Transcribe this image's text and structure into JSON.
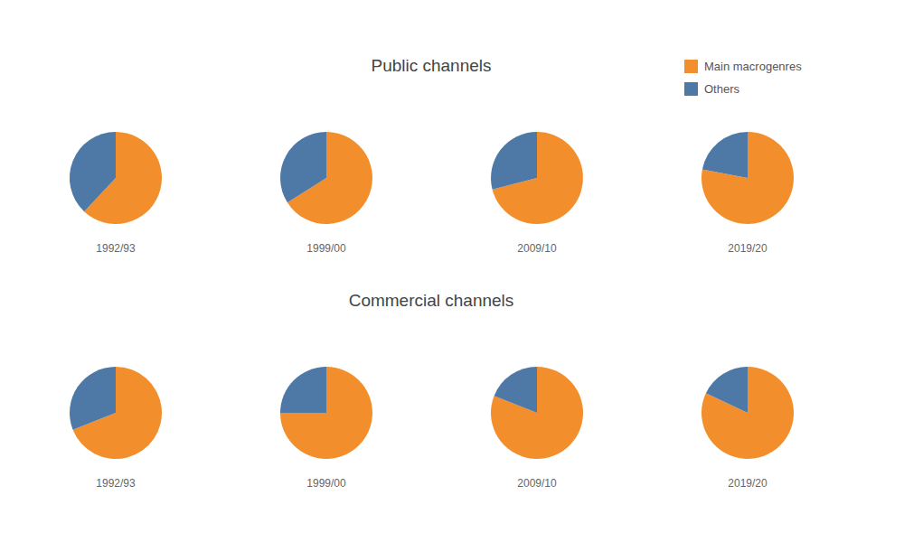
{
  "chart_data": {
    "type": "pie",
    "categories": [
      "Main macrogenres",
      "Others"
    ],
    "colors": [
      "#f28e2b",
      "#4e79a7"
    ],
    "legend": "top-right",
    "groups": [
      {
        "title": "Public channels",
        "series": [
          {
            "name": "1992/93",
            "values": [
              62,
              38
            ]
          },
          {
            "name": "1999/00",
            "values": [
              66,
              34
            ]
          },
          {
            "name": "2009/10",
            "values": [
              71,
              29
            ]
          },
          {
            "name": "2019/20",
            "values": [
              78,
              22
            ]
          }
        ]
      },
      {
        "title": "Commercial channels",
        "series": [
          {
            "name": "1992/93",
            "values": [
              69,
              31
            ]
          },
          {
            "name": "1999/00",
            "values": [
              75,
              25
            ]
          },
          {
            "name": "2009/10",
            "values": [
              81,
              19
            ]
          },
          {
            "name": "2019/20",
            "values": [
              82,
              18
            ]
          }
        ]
      }
    ]
  }
}
